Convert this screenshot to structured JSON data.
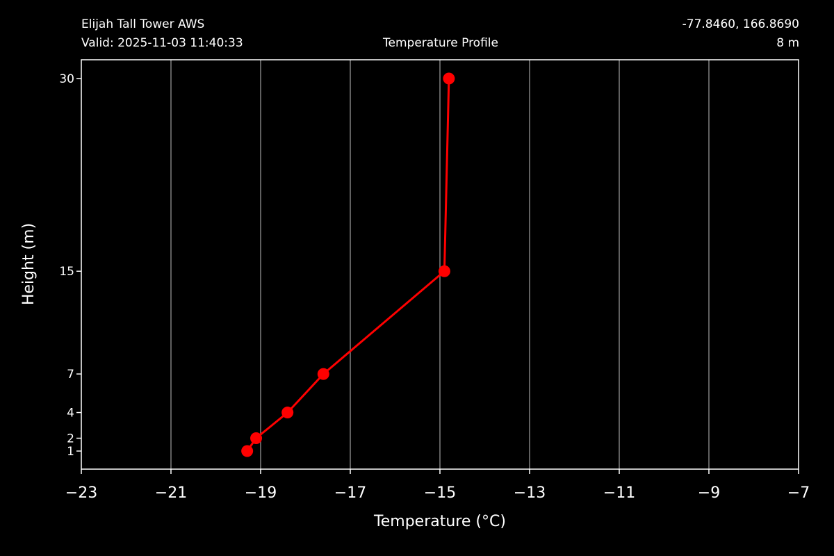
{
  "header": {
    "station": "Elijah Tall Tower AWS",
    "valid": "Valid: 2025-11-03 11:40:33",
    "title": "Temperature Profile",
    "coordinates": "-77.8460, 166.8690",
    "elevation": "8 m"
  },
  "chart_data": {
    "type": "line",
    "title": "Temperature Profile",
    "xlabel": "Temperature (°C)",
    "ylabel": "Height (m)",
    "xlim": [
      -23,
      -7
    ],
    "ylim": [
      0,
      30
    ],
    "x_ticks": [
      -23,
      -21,
      -19,
      -17,
      -15,
      -13,
      -11,
      -9,
      -7
    ],
    "x_tick_labels": [
      "−23",
      "−21",
      "−19",
      "−17",
      "−15",
      "−13",
      "−11",
      "−9",
      "−7"
    ],
    "y_ticks": [
      1,
      2,
      4,
      7,
      15,
      30
    ],
    "y_tick_labels": [
      "1",
      "2",
      "4",
      "7",
      "15",
      "30"
    ],
    "grid": "vertical",
    "series": [
      {
        "points": [
          {
            "x": -19.3,
            "y": 1
          },
          {
            "x": -19.1,
            "y": 2
          },
          {
            "x": -18.4,
            "y": 4
          },
          {
            "x": -17.6,
            "y": 7
          },
          {
            "x": -14.9,
            "y": 15
          },
          {
            "x": -14.8,
            "y": 30
          }
        ],
        "color": "#ff0000",
        "marker": "circle"
      }
    ],
    "background": "#000000",
    "grid_color": "#808080",
    "axis_color": "#ffffff"
  }
}
